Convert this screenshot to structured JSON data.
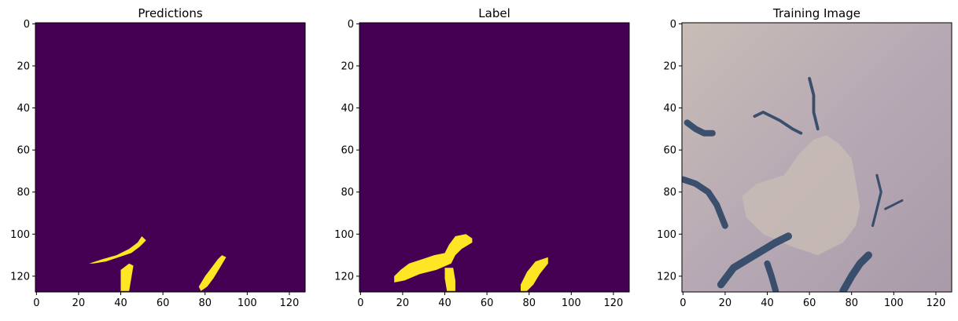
{
  "chart_data": [
    {
      "type": "heatmap",
      "title": "Predictions",
      "xlim": [
        0,
        127
      ],
      "ylim": [
        127,
        0
      ],
      "x_ticks": [
        0,
        20,
        40,
        60,
        80,
        100,
        120
      ],
      "y_ticks": [
        0,
        20,
        40,
        60,
        80,
        100,
        120
      ],
      "colormap": "viridis",
      "background_color": "#440154",
      "foreground_color": "#fde725",
      "grid": false,
      "regions": [
        {
          "name": "blob-1",
          "polygon": [
            [
              25,
              114
            ],
            [
              31,
              112
            ],
            [
              38,
              110
            ],
            [
              44,
              107
            ],
            [
              48,
              104
            ],
            [
              50,
              101
            ],
            [
              52,
              103
            ],
            [
              49,
              106
            ],
            [
              45,
              109
            ],
            [
              39,
              111
            ],
            [
              33,
              113
            ],
            [
              27,
              114
            ]
          ]
        },
        {
          "name": "blob-2",
          "polygon": [
            [
              40,
              117
            ],
            [
              44,
              114
            ],
            [
              46,
              115
            ],
            [
              45,
              121
            ],
            [
              44,
              127
            ],
            [
              40,
              127
            ]
          ]
        },
        {
          "name": "blob-3",
          "polygon": [
            [
              77,
              125
            ],
            [
              80,
              120
            ],
            [
              83,
              116
            ],
            [
              86,
              112
            ],
            [
              88,
              110
            ],
            [
              90,
              111
            ],
            [
              87,
              116
            ],
            [
              84,
              121
            ],
            [
              81,
              125
            ],
            [
              78,
              127
            ]
          ]
        }
      ]
    },
    {
      "type": "heatmap",
      "title": "Label",
      "xlim": [
        0,
        127
      ],
      "ylim": [
        127,
        0
      ],
      "x_ticks": [
        0,
        20,
        40,
        60,
        80,
        100,
        120
      ],
      "y_ticks": [
        0,
        20,
        40,
        60,
        80,
        100,
        120
      ],
      "colormap": "viridis",
      "background_color": "#440154",
      "foreground_color": "#fde725",
      "grid": false,
      "regions": [
        {
          "name": "blob-1",
          "polygon": [
            [
              16,
              120
            ],
            [
              19,
              117
            ],
            [
              23,
              114
            ],
            [
              29,
              112
            ],
            [
              35,
              110
            ],
            [
              40,
              109
            ],
            [
              42,
              105
            ],
            [
              45,
              101
            ],
            [
              50,
              100
            ],
            [
              53,
              102
            ],
            [
              53,
              104
            ],
            [
              48,
              107
            ],
            [
              45,
              110
            ],
            [
              43,
              114
            ],
            [
              36,
              117
            ],
            [
              28,
              119
            ],
            [
              21,
              122
            ],
            [
              16,
              123
            ]
          ]
        },
        {
          "name": "blob-2",
          "polygon": [
            [
              40,
              116
            ],
            [
              44,
              116
            ],
            [
              45,
              122
            ],
            [
              45,
              127
            ],
            [
              41,
              127
            ],
            [
              40,
              121
            ]
          ]
        },
        {
          "name": "blob-3",
          "polygon": [
            [
              76,
              124
            ],
            [
              79,
              118
            ],
            [
              83,
              113
            ],
            [
              89,
              111
            ],
            [
              89,
              114
            ],
            [
              85,
              119
            ],
            [
              82,
              124
            ],
            [
              79,
              127
            ],
            [
              76,
              127
            ]
          ]
        }
      ]
    },
    {
      "type": "image",
      "title": "Training Image",
      "xlim": [
        0,
        127
      ],
      "ylim": [
        127,
        0
      ],
      "x_ticks": [
        0,
        20,
        40,
        60,
        80,
        100,
        120
      ],
      "y_ticks": [
        0,
        20,
        40,
        60,
        80,
        100,
        120
      ],
      "base_color": "#b7a9b4",
      "dark_color": "#243e60",
      "light_color": "#c9bdb6",
      "grid": false,
      "light_regions": [
        {
          "name": "central-plateau",
          "polygon": [
            [
              48,
              72
            ],
            [
              55,
              62
            ],
            [
              62,
              55
            ],
            [
              68,
              53
            ],
            [
              74,
              57
            ],
            [
              80,
              64
            ],
            [
              82,
              75
            ],
            [
              84,
              87
            ],
            [
              82,
              96
            ],
            [
              76,
              104
            ],
            [
              64,
              110
            ],
            [
              52,
              106
            ],
            [
              38,
              100
            ],
            [
              30,
              92
            ],
            [
              28,
              82
            ],
            [
              35,
              76
            ]
          ]
        }
      ],
      "dark_strokes": [
        {
          "name": "streak-left-top",
          "width": 3,
          "points": [
            [
              2,
              47
            ],
            [
              6,
              50
            ],
            [
              10,
              52
            ],
            [
              14,
              52
            ]
          ]
        },
        {
          "name": "streak-left-mid",
          "width": 3,
          "points": [
            [
              0,
              74
            ],
            [
              6,
              76
            ],
            [
              12,
              80
            ],
            [
              16,
              86
            ],
            [
              20,
              96
            ]
          ]
        },
        {
          "name": "streak-lower-left",
          "width": 3.5,
          "points": [
            [
              18,
              124
            ],
            [
              24,
              116
            ],
            [
              34,
              110
            ],
            [
              44,
              104
            ],
            [
              50,
              101
            ]
          ]
        },
        {
          "name": "streak-lower-mid",
          "width": 3,
          "points": [
            [
              40,
              114
            ],
            [
              42,
              120
            ],
            [
              44,
              127
            ]
          ]
        },
        {
          "name": "streak-lower-right",
          "width": 3.5,
          "points": [
            [
              76,
              127
            ],
            [
              80,
              120
            ],
            [
              84,
              114
            ],
            [
              88,
              110
            ]
          ]
        },
        {
          "name": "channel-upper",
          "width": 1.4,
          "points": [
            [
              34,
              44
            ],
            [
              38,
              42
            ],
            [
              42,
              44
            ],
            [
              46,
              46
            ],
            [
              52,
              50
            ],
            [
              56,
              52
            ]
          ]
        },
        {
          "name": "channel-upper-right",
          "width": 1.4,
          "points": [
            [
              60,
              26
            ],
            [
              62,
              34
            ],
            [
              62,
              42
            ],
            [
              64,
              50
            ]
          ]
        },
        {
          "name": "channel-right",
          "width": 1.2,
          "points": [
            [
              92,
              72
            ],
            [
              94,
              80
            ],
            [
              92,
              88
            ],
            [
              90,
              96
            ]
          ]
        },
        {
          "name": "channel-far-right",
          "width": 1.1,
          "points": [
            [
              96,
              88
            ],
            [
              100,
              86
            ],
            [
              104,
              84
            ]
          ]
        }
      ]
    }
  ]
}
